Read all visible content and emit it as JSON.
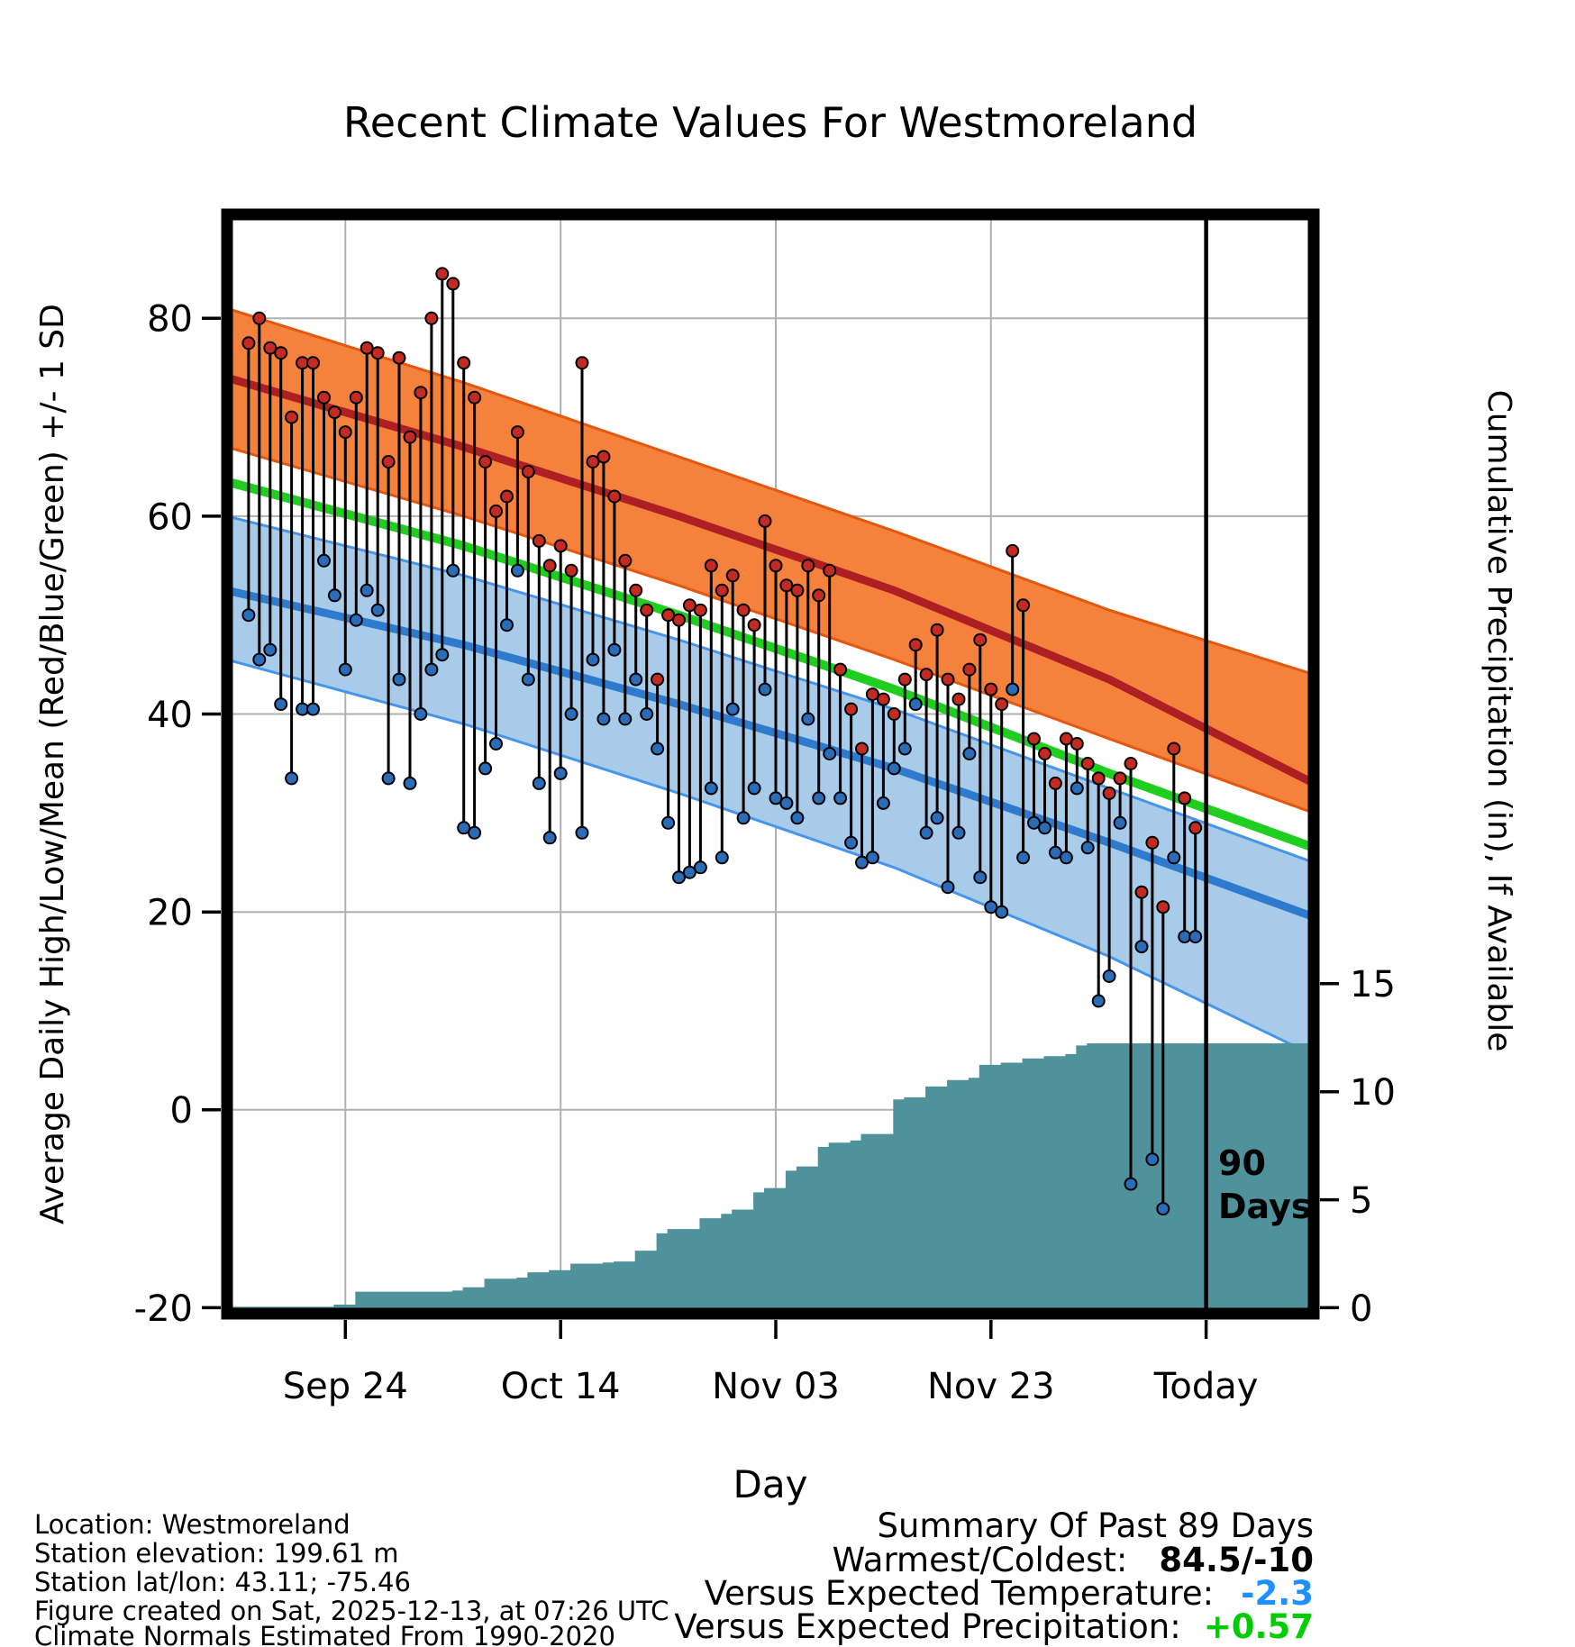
{
  "footer_left": [
    "Location: Westmoreland",
    "Station elevation: 199.61 m",
    "Station lat/lon: 43.11; -75.46",
    "Figure created on Sat, 2025-12-13, at 07:26 UTC",
    "Climate Normals Estimated From 1990-2020"
  ],
  "summary": {
    "title": "Summary Of Past 89 Days",
    "warmest_label": "Warmest/Coldest:",
    "warmest_value": "84.5/-10",
    "temp_label": "Versus Expected Temperature:",
    "temp_value": "-2.3",
    "precip_label": "Versus Expected Precipitation:",
    "precip_value": "+0.57"
  },
  "colors": {
    "grid": "#b0b0b0",
    "high_band": "#F5823C",
    "high_band_edge": "#E5560F",
    "high_line": "#AD1F23",
    "mean_line": "#1FCE1F",
    "low_band": "#A9CBEA",
    "low_band_edge": "#4596EA",
    "low_line": "#2E7BCE",
    "precip_area": "#4F929B",
    "high_dot": "#C32B22",
    "low_dot": "#2A6CB8",
    "accent_blue": "#1E90FF",
    "accent_green": "#00CC00",
    "border": "#000000"
  },
  "chart_data": {
    "type": "line",
    "title": "Recent Climate Values For Westmoreland",
    "xlabel": "Day",
    "ylabel_left": "Average Daily High/Low/Mean (Red/Blue/Green) +/- 1 SD",
    "ylabel_right": "Cumulative Precipitation (in), If Available",
    "x_domain_days": [
      -2,
      99
    ],
    "y_domain_temp": [
      -20.6,
      90.5
    ],
    "x_tick_days": [
      9,
      29,
      49,
      69,
      89
    ],
    "x_tick_labels": [
      "Sep 24",
      "Oct 14",
      "Nov 03",
      "Nov 23",
      "Today"
    ],
    "y_ticks_temp": [
      -20,
      0,
      20,
      40,
      60,
      80
    ],
    "right_ticks_precip": [
      0,
      5,
      10,
      15
    ],
    "precip_zero_temp": -20,
    "precip_scale_temp_per_inch": 2.183,
    "ninety_day_line_day": 89,
    "annotation_90": {
      "line1": "90",
      "line2": "Days"
    },
    "normals": {
      "days": [
        -2,
        20,
        40,
        60,
        80,
        99
      ],
      "high_plus_sd": [
        81,
        73.5,
        66,
        58.5,
        50.5,
        44
      ],
      "high_mean": [
        74,
        67,
        60,
        52.5,
        43.5,
        33
      ],
      "high_minus_sd": [
        67,
        60,
        53,
        45.5,
        37.5,
        30
      ],
      "mean": [
        63.5,
        57,
        50,
        42.5,
        34,
        26.5
      ],
      "low_plus_sd": [
        60,
        54,
        47.5,
        40.5,
        32.5,
        25
      ],
      "low_mean": [
        52.5,
        47,
        41,
        34.5,
        27,
        19.5
      ],
      "low_minus_sd": [
        45.5,
        39,
        32,
        24.5,
        15.5,
        5.5
      ]
    },
    "daily": {
      "start_day": 0,
      "highs": [
        77.5,
        80,
        77,
        76.5,
        70,
        75.5,
        75.5,
        72,
        70.5,
        68.5,
        72,
        77,
        76.5,
        65.5,
        76,
        68,
        72.5,
        80,
        84.5,
        83.5,
        75.5,
        72,
        65.5,
        60.5,
        62,
        68.5,
        64.5,
        57.5,
        55,
        57,
        54.5,
        75.5,
        65.5,
        66,
        62,
        55.5,
        52.5,
        50.5,
        43.5,
        50,
        49.5,
        51,
        50.5,
        55,
        52.5,
        54,
        50.5,
        49,
        59.5,
        55,
        53,
        52.5,
        55,
        52,
        54.5,
        44.5,
        40.5,
        36.5,
        42,
        41.5,
        40,
        43.5,
        47,
        44,
        48.5,
        43.5,
        41.5,
        44.5,
        47.5,
        42.5,
        41,
        56.5,
        51,
        37.5,
        36,
        33,
        37.5,
        37,
        35,
        33.5,
        32,
        33.5,
        35,
        22,
        27,
        20.5,
        36.5,
        31.5,
        28.5
      ],
      "lows": [
        50,
        45.5,
        46.5,
        41,
        33.5,
        40.5,
        40.5,
        55.5,
        52,
        44.5,
        49.5,
        52.5,
        50.5,
        33.5,
        43.5,
        33,
        40,
        44.5,
        46,
        54.5,
        28.5,
        28,
        34.5,
        37,
        49,
        54.5,
        43.5,
        33,
        27.5,
        34,
        40,
        28,
        45.5,
        39.5,
        46.5,
        39.5,
        43.5,
        40,
        36.5,
        29,
        23.5,
        24,
        24.5,
        32.5,
        25.5,
        40.5,
        29.5,
        32.5,
        42.5,
        31.5,
        31,
        29.5,
        39.5,
        31.5,
        36,
        31.5,
        27,
        25,
        25.5,
        31,
        34.5,
        36.5,
        41,
        28,
        29.5,
        22.5,
        28,
        36,
        23.5,
        20.5,
        20,
        42.5,
        25.5,
        29,
        28.5,
        26,
        25.5,
        32.5,
        26.5,
        11,
        13.5,
        29,
        -7.5,
        16.5,
        -5,
        -10,
        25.5,
        17.5,
        17.5
      ]
    },
    "cumulative_precip_in": [
      0,
      0,
      0,
      0,
      0,
      0,
      0,
      0,
      0.1,
      0.1,
      0.7,
      0.7,
      0.7,
      0.7,
      0.7,
      0.7,
      0.7,
      0.7,
      0.7,
      0.75,
      0.9,
      0.9,
      1.3,
      1.3,
      1.3,
      1.35,
      1.6,
      1.6,
      1.7,
      1.7,
      2.0,
      2.0,
      2.0,
      2.05,
      2.1,
      2.1,
      2.6,
      2.6,
      3.4,
      3.6,
      3.6,
      3.6,
      4.1,
      4.1,
      4.3,
      4.5,
      4.5,
      5.3,
      5.5,
      5.5,
      6.3,
      6.5,
      6.5,
      7.4,
      7.6,
      7.6,
      7.7,
      8.0,
      8.0,
      8.0,
      9.6,
      9.7,
      9.7,
      10.2,
      10.2,
      10.5,
      10.5,
      10.6,
      11.2,
      11.2,
      11.3,
      11.3,
      11.5,
      11.5,
      11.6,
      11.6,
      11.7,
      12.1,
      12.2,
      12.2,
      12.2,
      12.2,
      12.2,
      12.2,
      12.2,
      12.2,
      12.2,
      12.2,
      12.2
    ]
  }
}
